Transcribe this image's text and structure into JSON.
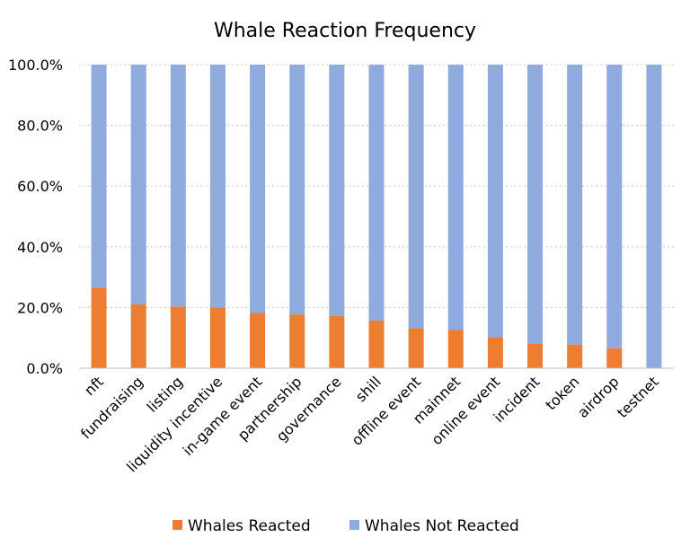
{
  "chart_data": {
    "type": "bar",
    "stacked": true,
    "title": "Whale Reaction Frequency",
    "xlabel": "",
    "ylabel": "",
    "ylim": [
      0,
      100
    ],
    "yticks": [
      "0.0%",
      "20.0%",
      "40.0%",
      "60.0%",
      "80.0%",
      "100.0%"
    ],
    "grid": true,
    "legend_position": "bottom",
    "categories": [
      "nft",
      "fundraising",
      "listing",
      "liquidity incentive",
      "in-game event",
      "partnership",
      "governance",
      "shill",
      "offline event",
      "mainnet",
      "online event",
      "incident",
      "token",
      "airdrop",
      "testnet"
    ],
    "series": [
      {
        "name": "Whales Reacted",
        "color": "#ED7D31",
        "values": [
          26.5,
          21.0,
          20.3,
          20.0,
          18.2,
          17.7,
          17.2,
          15.7,
          13.2,
          12.6,
          10.3,
          8.1,
          7.8,
          6.6,
          0.0
        ]
      },
      {
        "name": "Whales Not Reacted",
        "color": "#8FAADC",
        "values": [
          73.5,
          79.0,
          79.7,
          80.0,
          81.8,
          82.3,
          82.8,
          84.3,
          86.8,
          87.4,
          89.7,
          91.9,
          92.2,
          93.4,
          100.0
        ]
      }
    ]
  }
}
